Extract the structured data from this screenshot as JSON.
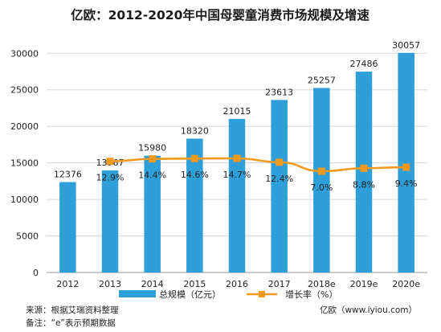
{
  "chart_data": {
    "type": "bar",
    "title": "亿欧：2012-2020年中国母婴童消费市场规模及增速",
    "categories": [
      "2012",
      "2013",
      "2014",
      "2015",
      "2016",
      "2017",
      "2018e",
      "2019e",
      "2020e"
    ],
    "series": [
      {
        "name": "总规模（亿元）",
        "type": "bar",
        "axis": "left",
        "color": "#2E9FD8",
        "values": [
          12376,
          13967,
          15980,
          18320,
          21015,
          23613,
          25257,
          27486,
          30057
        ],
        "labels": [
          "12376",
          "13967",
          "15980",
          "18320",
          "21015",
          "23613",
          "25257",
          "27486",
          "30057"
        ]
      },
      {
        "name": "增长率（%）",
        "type": "line",
        "axis": "right",
        "color": "#F39A1E",
        "marker": "square",
        "values": [
          null,
          12.9,
          14.4,
          14.6,
          14.7,
          12.4,
          7.0,
          8.8,
          9.4
        ],
        "labels": [
          "",
          "12.9%",
          "14.4%",
          "14.6%",
          "14.7%",
          "12.4%",
          "7.0%",
          "8.8%",
          "9.4%"
        ]
      }
    ],
    "y_axis": {
      "ticks": [
        "0",
        "5000",
        "10000",
        "15000",
        "20000",
        "25000",
        "30000"
      ],
      "ylim": [
        0,
        33000
      ]
    },
    "grid": true,
    "legend": "bottom-center"
  },
  "footer": {
    "source": "来源：根据艾瑞资料整理",
    "note": "备注：“e”表示预期数据",
    "brand": "亿欧（www.iyiou.com）"
  }
}
